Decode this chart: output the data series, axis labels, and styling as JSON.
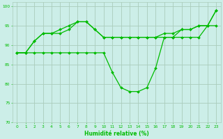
{
  "xlabel": "Humidité relative (%)",
  "background_color": "#cceee8",
  "grid_color": "#aaccbb",
  "line_color": "#00bb00",
  "xlim": [
    -0.5,
    23.5
  ],
  "ylim": [
    70,
    101
  ],
  "yticks": [
    70,
    75,
    80,
    85,
    90,
    95,
    100
  ],
  "xticks": [
    0,
    1,
    2,
    3,
    4,
    5,
    6,
    7,
    8,
    9,
    10,
    11,
    12,
    13,
    14,
    15,
    16,
    17,
    18,
    19,
    20,
    21,
    22,
    23
  ],
  "line1_x": [
    0,
    1,
    2,
    3,
    4,
    5,
    6,
    7,
    8,
    9,
    10,
    11,
    12,
    13,
    14,
    15,
    16,
    17,
    18,
    19,
    20,
    21,
    22,
    23
  ],
  "line1_y": [
    88,
    88,
    88,
    88,
    88,
    88,
    88,
    88,
    88,
    88,
    88,
    83,
    79,
    78,
    78,
    79,
    84,
    92,
    92,
    92,
    92,
    92,
    95,
    95
  ],
  "line2_x": [
    0,
    1,
    2,
    3,
    4,
    5,
    6,
    7,
    8,
    9,
    10,
    11,
    12,
    13,
    14,
    15,
    16,
    17,
    18,
    19,
    20,
    21,
    22,
    23
  ],
  "line2_y": [
    88,
    88,
    91,
    93,
    93,
    93,
    94,
    96,
    96,
    94,
    92,
    92,
    92,
    92,
    92,
    92,
    92,
    92,
    92,
    94,
    94,
    95,
    95,
    99
  ],
  "line3_x": [
    0,
    1,
    2,
    3,
    4,
    5,
    6,
    7,
    8,
    9,
    10,
    11,
    12,
    13,
    14,
    15,
    16,
    17,
    18,
    19,
    20,
    21,
    22,
    23
  ],
  "line3_y": [
    88,
    88,
    91,
    93,
    93,
    94,
    95,
    96,
    96,
    94,
    92,
    92,
    92,
    92,
    92,
    92,
    92,
    93,
    93,
    94,
    94,
    95,
    95,
    99
  ],
  "marker": "D",
  "markersize": 2,
  "linewidth": 0.9,
  "xlabel_fontsize": 5.5,
  "tick_labelsize": 4.2
}
